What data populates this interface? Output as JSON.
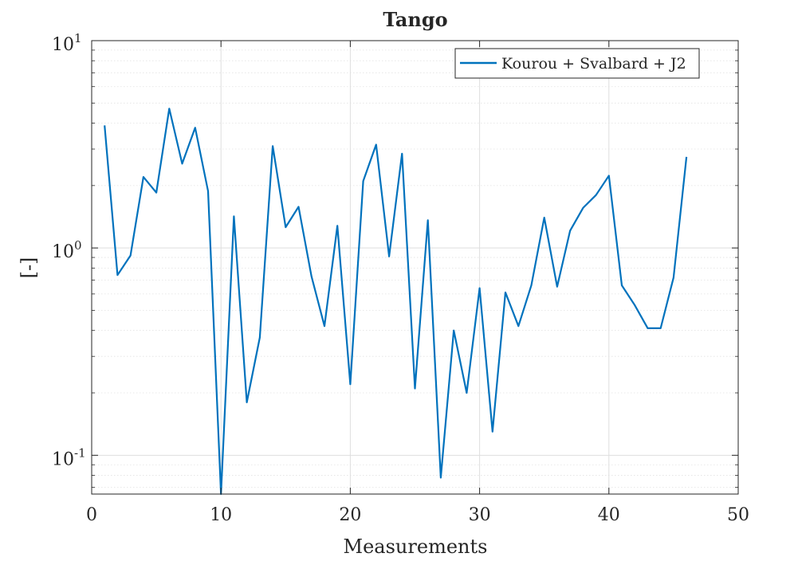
{
  "chart_data": {
    "type": "line",
    "title": "Tango",
    "xlabel": "Measurements",
    "ylabel": "[-]",
    "xlim": [
      0,
      50
    ],
    "ylim": [
      0.065,
      10
    ],
    "yscale": "log",
    "grid": true,
    "minor_grid": true,
    "legend_position": "top-right",
    "x_ticks": [
      0,
      10,
      20,
      30,
      40,
      50
    ],
    "x_tick_labels": [
      "0",
      "10",
      "20",
      "30",
      "40",
      "50"
    ],
    "y_ticks": [
      0.1,
      1,
      10
    ],
    "y_tick_labels": [
      {
        "base": "10",
        "exp": "-1"
      },
      {
        "base": "10",
        "exp": "0"
      },
      {
        "base": "10",
        "exp": "1"
      }
    ],
    "series": [
      {
        "name": "Kourou + Svalbard + J2",
        "color": "#0072bd",
        "x": [
          1,
          2,
          3,
          4,
          5,
          6,
          7,
          8,
          9,
          10,
          11,
          12,
          13,
          14,
          15,
          16,
          17,
          18,
          19,
          20,
          21,
          22,
          23,
          24,
          25,
          26,
          27,
          28,
          29,
          30,
          31,
          32,
          33,
          34,
          35,
          36,
          37,
          38,
          39,
          40,
          41,
          42,
          43,
          44,
          45,
          46
        ],
        "y": [
          3.9,
          0.74,
          0.92,
          2.2,
          1.85,
          4.7,
          2.55,
          3.8,
          1.88,
          0.065,
          1.42,
          0.18,
          0.37,
          3.1,
          1.26,
          1.58,
          0.73,
          0.42,
          1.28,
          0.22,
          2.1,
          3.15,
          0.91,
          2.85,
          0.21,
          1.36,
          0.078,
          0.4,
          0.2,
          0.64,
          0.13,
          0.61,
          0.42,
          0.66,
          1.4,
          0.65,
          1.21,
          1.56,
          1.8,
          2.23,
          0.66,
          0.53,
          0.41,
          0.41,
          0.72,
          2.75
        ]
      }
    ]
  }
}
